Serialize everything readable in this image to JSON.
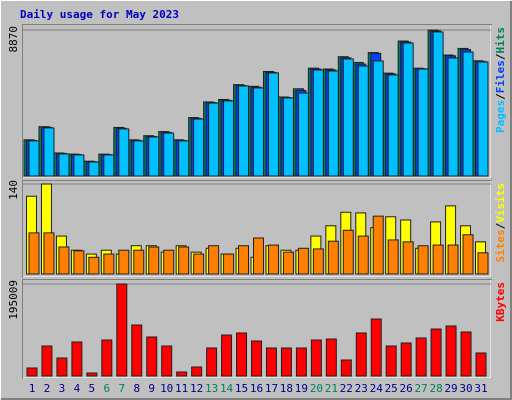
{
  "legend_separator": "/",
  "chart_data": [
    {
      "type": "bar",
      "title": "Daily usage for May 2023",
      "series": [
        {
          "name": "Hits",
          "color": "#00805c",
          "values": [
            2200,
            3000,
            1400,
            1330,
            900,
            1330,
            2950,
            2200,
            2450,
            2700,
            2200,
            3550,
            4500,
            4650,
            5550,
            5450,
            6350,
            4800,
            5300,
            6550,
            6500,
            7250,
            6900,
            7500,
            6250,
            8200,
            6550,
            8870,
            7350,
            7750,
            7000
          ]
        },
        {
          "name": "Files",
          "color": "#0040ff",
          "values": [
            2160,
            2960,
            1370,
            1300,
            870,
            1300,
            2900,
            2160,
            2400,
            2650,
            2160,
            3500,
            4460,
            4600,
            5500,
            5400,
            6300,
            4770,
            5200,
            6500,
            6440,
            7180,
            6800,
            7450,
            6200,
            8140,
            6520,
            8810,
            7300,
            7680,
            6960
          ]
        },
        {
          "name": "Pages",
          "color": "#00c0ff",
          "values": [
            2130,
            2920,
            1340,
            1280,
            850,
            1280,
            2860,
            2130,
            2370,
            2610,
            2130,
            3460,
            4430,
            4560,
            5470,
            5350,
            6260,
            4740,
            5040,
            6440,
            6380,
            7110,
            6680,
            6990,
            6140,
            8080,
            6500,
            8750,
            7170,
            7530,
            6930
          ]
        }
      ],
      "ylim": [
        0,
        8870
      ],
      "yticks": [
        8870
      ],
      "grid": true
    },
    {
      "type": "bar",
      "series": [
        {
          "name": "Visits",
          "color": "#ffff00",
          "values": [
            121,
            140,
            59,
            37,
            31,
            37,
            31,
            44,
            44,
            34,
            44,
            34,
            40,
            31,
            40,
            26,
            44,
            37,
            37,
            59,
            75,
            96,
            95,
            72,
            89,
            84,
            40,
            81,
            106,
            75,
            50
          ]
        },
        {
          "name": "Sites",
          "color": "#ff8000",
          "values": [
            64,
            64,
            42,
            36,
            26,
            31,
            37,
            37,
            42,
            37,
            42,
            31,
            44,
            31,
            44,
            56,
            45,
            34,
            40,
            39,
            51,
            68,
            59,
            90,
            53,
            50,
            44,
            45,
            45,
            61,
            33
          ]
        }
      ],
      "ylim": [
        0,
        140
      ],
      "yticks": [
        140
      ],
      "grid": true
    },
    {
      "type": "bar",
      "categories": [
        "1",
        "2",
        "3",
        "4",
        "5",
        "6",
        "7",
        "8",
        "9",
        "10",
        "11",
        "12",
        "13",
        "14",
        "15",
        "16",
        "17",
        "18",
        "19",
        "20",
        "21",
        "22",
        "23",
        "24",
        "25",
        "26",
        "27",
        "28",
        "29",
        "30",
        "31"
      ],
      "x_label_colors": [
        "#00008b",
        "#00008b",
        "#00008b",
        "#00008b",
        "#00008b",
        "#00805c",
        "#00805c",
        "#00008b",
        "#00008b",
        "#00008b",
        "#00008b",
        "#00008b",
        "#00805c",
        "#00805c",
        "#00008b",
        "#00008b",
        "#00008b",
        "#00008b",
        "#00008b",
        "#00805c",
        "#00805c",
        "#00008b",
        "#00008b",
        "#00008b",
        "#00008b",
        "#00008b",
        "#00805c",
        "#00805c",
        "#00008b",
        "#00008b",
        "#00008b"
      ],
      "series": [
        {
          "name": "KBytes",
          "color": "#ff0000",
          "values": [
            17000,
            63600,
            38200,
            72100,
            6400,
            76300,
            195009,
            108100,
            82700,
            63600,
            8500,
            19100,
            59400,
            86900,
            91200,
            74200,
            59400,
            59400,
            59400,
            76300,
            78400,
            33900,
            91200,
            120800,
            63600,
            70000,
            80600,
            99600,
            106000,
            93300,
            48800
          ]
        }
      ],
      "ylim": [
        0,
        195009
      ],
      "yticks": [
        195009
      ],
      "grid": true
    }
  ]
}
